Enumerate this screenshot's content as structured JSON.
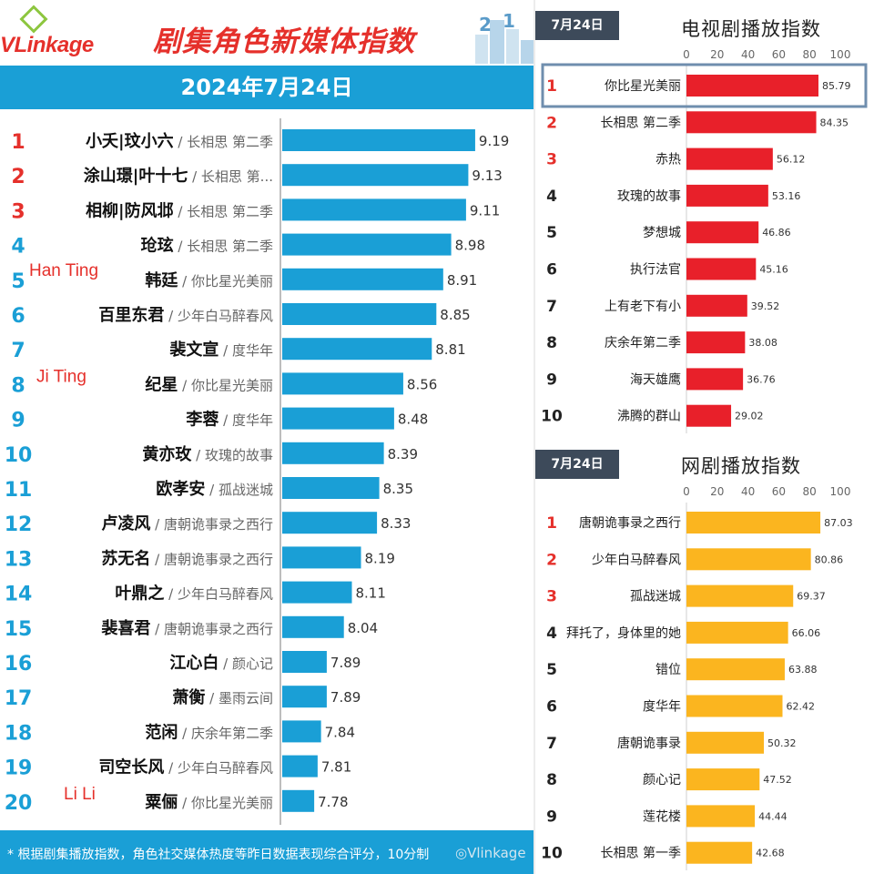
{
  "header": {
    "logo_text": "VLinkage",
    "title": "剧集角色新媒体指数",
    "date_banner": "2024年7月24日"
  },
  "footer": {
    "note": "* 根据剧集播放指数，角色社交媒体热度等昨日数据表现综合评分，10分制",
    "watermark": "◎Vlinkage"
  },
  "annotations": [
    {
      "rank": 5,
      "text": "Han Ting"
    },
    {
      "rank": 8,
      "text": "Ji Ting"
    },
    {
      "rank": 20,
      "text": "Li Li"
    }
  ],
  "colors": {
    "brand_red": "#e5302b",
    "rank_blue": "#1a9fd6",
    "tv_bar": "#e8202a",
    "web_bar": "#fbb51f",
    "tag_dark": "#3d4a5a"
  },
  "tv_panel": {
    "date_tag": "7月24日",
    "title": "电视剧播放指数"
  },
  "web_panel": {
    "date_tag": "7月24日",
    "title": "网剧播放指数"
  },
  "chart_data": [
    {
      "type": "bar",
      "title": "剧集角色新媒体指数",
      "subtitle": "2024年7月24日",
      "orientation": "horizontal",
      "ranks": [
        1,
        2,
        3,
        4,
        5,
        6,
        7,
        8,
        9,
        10,
        11,
        12,
        13,
        14,
        15,
        16,
        17,
        18,
        19,
        20
      ],
      "characters": [
        "小夭|玟小六",
        "涂山璟|叶十七",
        "相柳|防风邶",
        "玱玹",
        "韩廷",
        "百里东君",
        "裴文宣",
        "纪星",
        "李蓉",
        "黄亦玫",
        "欧孝安",
        "卢凌风",
        "苏无名",
        "叶鼎之",
        "裴喜君",
        "江心白",
        "萧衡",
        "范闲",
        "司空长风",
        "粟俪"
      ],
      "dramas": [
        "长相思 第二季",
        "长相思 第...",
        "长相思 第二季",
        "长相思 第二季",
        "你比星光美丽",
        "少年白马醉春风",
        "度华年",
        "你比星光美丽",
        "度华年",
        "玫瑰的故事",
        "孤战迷城",
        "唐朝诡事录之西行",
        "唐朝诡事录之西行",
        "少年白马醉春风",
        "唐朝诡事录之西行",
        "颜心记",
        "墨雨云间",
        "庆余年第二季",
        "少年白马醉春风",
        "你比星光美丽"
      ],
      "values": [
        9.19,
        9.13,
        9.11,
        8.98,
        8.91,
        8.85,
        8.81,
        8.56,
        8.48,
        8.39,
        8.35,
        8.33,
        8.19,
        8.11,
        8.04,
        7.89,
        7.89,
        7.84,
        7.81,
        7.78
      ],
      "value_labels": [
        "9.19",
        "9.13",
        "9.11",
        "8.98",
        "8.91",
        "8.85",
        "8.81",
        "8.56",
        "8.48",
        "8.39",
        "8.35",
        "8.33",
        "8.19",
        "8.11",
        "8.04",
        "7.89",
        "7.89",
        "7.84",
        "7.81",
        "7.78"
      ],
      "xlim": [
        7.5,
        9.35
      ]
    },
    {
      "type": "bar",
      "title": "电视剧播放指数",
      "orientation": "horizontal",
      "ranks": [
        1,
        2,
        3,
        4,
        5,
        6,
        7,
        8,
        9,
        10
      ],
      "categories": [
        "你比星光美丽",
        "长相思 第二季",
        "赤热",
        "玫瑰的故事",
        "梦想城",
        "执行法官",
        "上有老下有小",
        "庆余年第二季",
        "海天雄鹰",
        "沸腾的群山"
      ],
      "values": [
        85.79,
        84.35,
        56.12,
        53.16,
        46.86,
        45.16,
        39.52,
        38.08,
        36.76,
        29.02
      ],
      "value_labels": [
        "85.79",
        "84.35",
        "56.12",
        "53.16",
        "46.86",
        "45.16",
        "39.52",
        "38.08",
        "36.76",
        "29.02"
      ],
      "xlim": [
        0,
        100
      ],
      "xticks": [
        "0",
        "20",
        "40",
        "60",
        "80",
        "100"
      ],
      "highlighted_rank": 1
    },
    {
      "type": "bar",
      "title": "网剧播放指数",
      "orientation": "horizontal",
      "ranks": [
        1,
        2,
        3,
        4,
        5,
        6,
        7,
        8,
        9,
        10
      ],
      "categories": [
        "唐朝诡事录之西行",
        "少年白马醉春风",
        "孤战迷城",
        "拜托了，身体里的她",
        "错位",
        "度华年",
        "唐朝诡事录",
        "颜心记",
        "莲花楼",
        "长相思 第一季"
      ],
      "values": [
        87.03,
        80.86,
        69.37,
        66.06,
        63.88,
        62.42,
        50.32,
        47.52,
        44.44,
        42.68
      ],
      "value_labels": [
        "87.03",
        "80.86",
        "69.37",
        "66.06",
        "63.88",
        "62.42",
        "50.32",
        "47.52",
        "44.44",
        "42.68"
      ],
      "xlim": [
        0,
        100
      ],
      "xticks": [
        "0",
        "20",
        "40",
        "60",
        "80",
        "100"
      ]
    }
  ]
}
